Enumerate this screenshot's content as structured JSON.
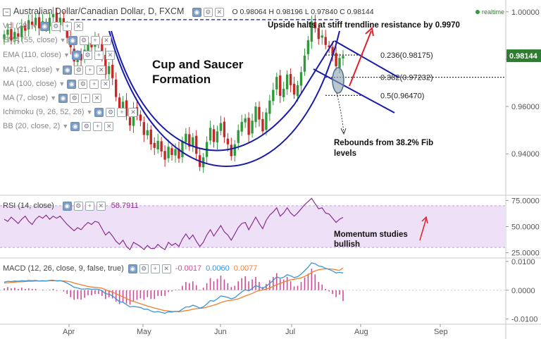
{
  "header": {
    "symbol_title": "Australian Dollar/Canadian Dollar, D, FXCM",
    "ohlc": [
      {
        "k": "O",
        "v": "0.98064"
      },
      {
        "k": "H",
        "v": "0.98196"
      },
      {
        "k": "L",
        "v": "0.97840"
      },
      {
        "k": "C",
        "v": "0.98144"
      }
    ],
    "realtime_label": "realtime"
  },
  "indicators": [
    {
      "label": "Vol (20)"
    },
    {
      "label": "EMA (55, close)"
    },
    {
      "label": "EMA (110, close)"
    },
    {
      "label": "MA (21, close)"
    },
    {
      "label": "MA (100, close)"
    },
    {
      "label": "MA (7, close)"
    },
    {
      "label": "Ichimoku (9, 26, 52, 26)"
    },
    {
      "label": "BB (20, close, 2)"
    }
  ],
  "colors": {
    "bull": "#2e9a3a",
    "bear": "#c62828",
    "trend_blue": "#1a1aa8",
    "annotation_red": "#e0202b",
    "rsi_band": "#eee0f7",
    "rsi_line": "#8a2f8f",
    "macd_line": "#3a95d8",
    "signal_line": "#f07f2b",
    "hist": "#d14a9a",
    "price_badge": "#2e7d32"
  },
  "chart_data": [
    {
      "type": "candlestick",
      "title": "Australian Dollar/Canadian Dollar, D, FXCM",
      "x_ticks": [
        "Apr",
        "May",
        "Jun",
        "Jul",
        "Aug",
        "Sep"
      ],
      "y_ticks": [
        "1.00000",
        "0.98000",
        "0.96000",
        "0.94000"
      ],
      "ylim": [
        0.9225,
        1.005
      ],
      "last_price": "0.98144",
      "closes": [
        0.9905,
        0.9925,
        0.988,
        0.9915,
        0.9895,
        0.994,
        0.992,
        0.9965,
        0.9945,
        0.9975,
        0.993,
        0.996,
        0.994,
        0.9975,
        0.999,
        0.995,
        0.9975,
        0.994,
        0.989,
        0.985,
        0.979,
        0.982,
        0.9795,
        0.984,
        0.987,
        0.985,
        0.9885,
        0.987,
        0.982,
        0.9735,
        0.977,
        0.972,
        0.964,
        0.959,
        0.962,
        0.956,
        0.952,
        0.9595,
        0.956,
        0.954,
        0.948,
        0.95,
        0.944,
        0.9425,
        0.9455,
        0.941,
        0.9375,
        0.943,
        0.9395,
        0.942,
        0.938,
        0.9455,
        0.9485,
        0.943,
        0.947,
        0.94,
        0.9345,
        0.9385,
        0.945,
        0.951,
        0.945,
        0.9495,
        0.953,
        0.947,
        0.944,
        0.939,
        0.944,
        0.95,
        0.9535,
        0.955,
        0.948,
        0.954,
        0.96,
        0.9545,
        0.9495,
        0.9575,
        0.9625,
        0.967,
        0.9725,
        0.9645,
        0.9675,
        0.9735,
        0.969,
        0.965,
        0.969,
        0.9745,
        0.9815,
        0.988,
        0.996,
        0.993,
        0.9885,
        0.99,
        0.986,
        0.985,
        0.982,
        0.977,
        0.9805,
        0.9814
      ],
      "levels": [
        {
          "label": "0.236(0.98175)",
          "value": 0.98175
        },
        {
          "label": "0.382(0.97232)",
          "value": 0.97232
        },
        {
          "label": "0.5(0.96470)",
          "value": 0.9647
        }
      ],
      "resistance": {
        "value": 0.997
      },
      "annotations": {
        "resistance_note": "Upside halts at stiff trendline resistance by 0.9970",
        "pattern_line1": "Cup and Saucer",
        "pattern_line2": "Formation",
        "rebound_line1": "Rebounds from 38.2% Fib",
        "rebound_line2": "levels"
      }
    },
    {
      "type": "line",
      "title": "RSI (14, close)",
      "last_value": "58.7911",
      "y_ticks": [
        "75.0000",
        "50.0000",
        "25.0000"
      ],
      "ylim": [
        20,
        80
      ],
      "band": [
        30,
        70
      ],
      "values": [
        57,
        55,
        59,
        56,
        53,
        57,
        60,
        55,
        52,
        57,
        60,
        58,
        61,
        57,
        60,
        58,
        60,
        56,
        52,
        49,
        46,
        49,
        47,
        51,
        54,
        52,
        55,
        54,
        48,
        42,
        45,
        41,
        36,
        33,
        37,
        31,
        28,
        35,
        33,
        31,
        28,
        32,
        29,
        29,
        33,
        30,
        28,
        35,
        32,
        34,
        31,
        38,
        43,
        38,
        42,
        36,
        31,
        35,
        42,
        47,
        41,
        46,
        51,
        45,
        42,
        37,
        43,
        49,
        53,
        54,
        47,
        53,
        59,
        53,
        48,
        56,
        61,
        64,
        68,
        60,
        63,
        68,
        63,
        60,
        63,
        67,
        71,
        74,
        77,
        72,
        67,
        68,
        63,
        62,
        58,
        54,
        57,
        58.8
      ],
      "annotation_line1": "Momentum studies",
      "annotation_line2": "bullish"
    },
    {
      "type": "bar+line",
      "title": "MACD (12, 26, close, 9, false, true)",
      "readouts": [
        "-0.0017",
        "0.0060",
        "0.0077"
      ],
      "y_ticks": [
        "0.0100",
        "0.0000",
        "-0.0100"
      ],
      "ylim": [
        -0.0118,
        0.0112
      ],
      "macd": [
        0.0028,
        0.0031,
        0.003,
        0.0032,
        0.0031,
        0.0033,
        0.0032,
        0.0034,
        0.0033,
        0.0034,
        0.0032,
        0.0033,
        0.0032,
        0.0034,
        0.0035,
        0.0032,
        0.0033,
        0.003,
        0.0025,
        0.0018,
        0.001,
        0.0008,
        0.0004,
        0.0004,
        0.0005,
        0.0003,
        0.0004,
        0.0003,
        -0.0002,
        -0.0012,
        -0.0014,
        -0.002,
        -0.003,
        -0.004,
        -0.0042,
        -0.005,
        -0.0058,
        -0.0056,
        -0.0058,
        -0.006,
        -0.0066,
        -0.0066,
        -0.0072,
        -0.0076,
        -0.0074,
        -0.0077,
        -0.008,
        -0.0075,
        -0.0076,
        -0.0073,
        -0.0074,
        -0.0066,
        -0.0058,
        -0.0058,
        -0.0052,
        -0.0056,
        -0.0062,
        -0.0058,
        -0.0048,
        -0.0036,
        -0.0038,
        -0.003,
        -0.002,
        -0.0022,
        -0.0025,
        -0.003,
        -0.0026,
        -0.0016,
        -0.0006,
        0.0002,
        -0.0002,
        0.0006,
        0.0016,
        0.0012,
        0.0006,
        0.0014,
        0.0024,
        0.0034,
        0.0046,
        0.0042,
        0.0045,
        0.0054,
        0.005,
        0.0044,
        0.0047,
        0.0056,
        0.0068,
        0.008,
        0.0095,
        0.0092,
        0.0084,
        0.0082,
        0.0076,
        0.0072,
        0.0067,
        0.006,
        0.0062,
        0.006
      ],
      "signal": [
        0.0025,
        0.0026,
        0.0027,
        0.0028,
        0.0029,
        0.0029,
        0.003,
        0.0031,
        0.0031,
        0.0032,
        0.0032,
        0.0032,
        0.0032,
        0.0033,
        0.0033,
        0.0033,
        0.0033,
        0.0032,
        0.0031,
        0.0029,
        0.0025,
        0.0022,
        0.0019,
        0.0016,
        0.0013,
        0.0011,
        0.001,
        0.0009,
        0.0007,
        0.0002,
        -0.0003,
        -0.0007,
        -0.0012,
        -0.0018,
        -0.0023,
        -0.0029,
        -0.0035,
        -0.0039,
        -0.0043,
        -0.0047,
        -0.0051,
        -0.0055,
        -0.0058,
        -0.0062,
        -0.0065,
        -0.0068,
        -0.0071,
        -0.0072,
        -0.0074,
        -0.0074,
        -0.0075,
        -0.0073,
        -0.0071,
        -0.0069,
        -0.0066,
        -0.0064,
        -0.0063,
        -0.0062,
        -0.0059,
        -0.0055,
        -0.0052,
        -0.0048,
        -0.0043,
        -0.0039,
        -0.0036,
        -0.0035,
        -0.0033,
        -0.003,
        -0.0025,
        -0.002,
        -0.0016,
        -0.0011,
        -0.0005,
        -0.0001,
        0.0001,
        0.0004,
        0.0008,
        0.0013,
        0.0019,
        0.0024,
        0.0028,
        0.0033,
        0.0036,
        0.0038,
        0.004,
        0.0043,
        0.0048,
        0.0054,
        0.0061,
        0.0067,
        0.0071,
        0.0073,
        0.0074,
        0.0074,
        0.0073,
        0.0071,
        0.0069,
        0.0077
      ]
    }
  ]
}
